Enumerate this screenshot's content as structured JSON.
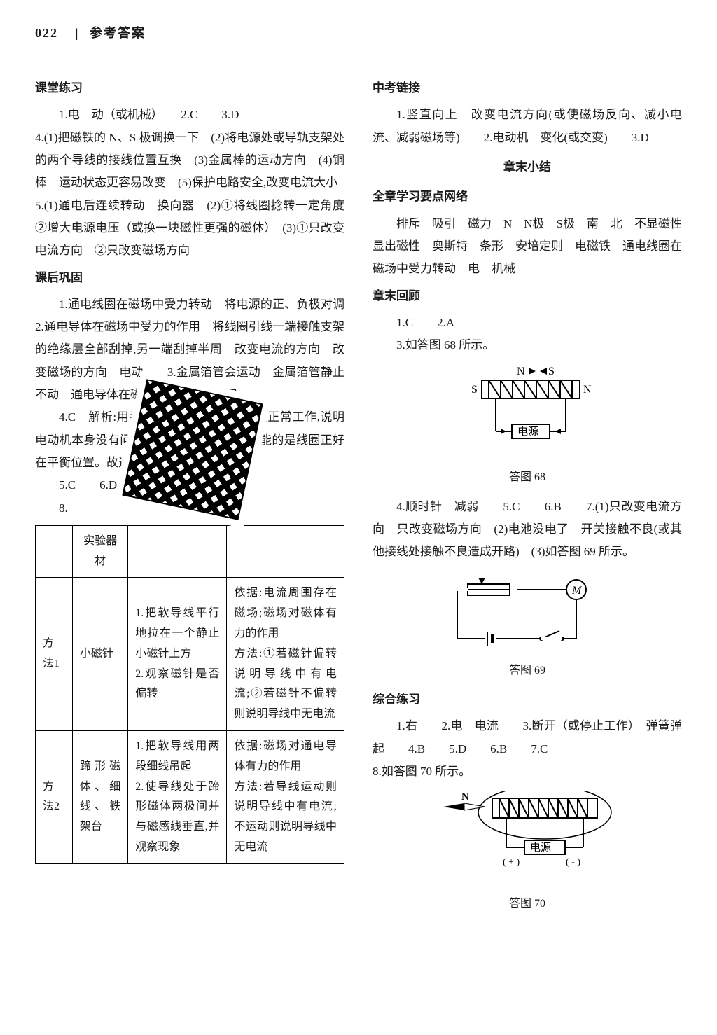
{
  "header": {
    "page_number": "022",
    "divider": "|",
    "title": "参考答案"
  },
  "left_column": {
    "sec1_title": "课堂练习",
    "sec1_line1": "1.电　动（或机械）　　2.C　　3.D",
    "sec1_para1": "4.(1)把磁铁的 N、S 极调换一下　(2)将电源处或导轨支架处的两个导线的接线位置互换　(3)金属棒的运动方向　(4)铜棒　运动状态更容易改变　(5)保护电路安全,改变电流大小",
    "sec1_para2": "5.(1)通电后连续转动　换向器　(2)①将线圈捻转一定角度　②增大电源电压（或换一块磁性更强的磁体）　(3)①只改变电流方向　②只改变磁场方向",
    "sec2_title": "课后巩固",
    "sec2_para1": "1.通电线圈在磁场中受力转动　将电源的正、负极对调　　2.通电导体在磁场中受力的作用　将线圈引线一端接触支架的绝缘层全部刮掉,另一端刮掉半周　改变电流的方向　改变磁场的方向　电动　　3.金属箔管会运动　金属箔管静止不动　通电导体在磁场中受到力的作用",
    "sec2_para2": "4.C　解析:用手轻碰一下后,电动机可以正常工作,说明电动机本身没有问题,电流也应正常,最有可能的是线圈正好在平衡位置。故选 C。",
    "sec2_line3": "5.C　　6.D",
    "sec2_line4": "8.",
    "table": {
      "header": [
        "",
        "实验器材",
        "",
        ""
      ],
      "row1": {
        "c1": "方法1",
        "c2": "小磁针",
        "c3": "1.把软导线平行地拉在一个静止小磁针上方\n2.观察磁针是否偏转",
        "c4": "依据:电流周围存在磁场;磁场对磁体有力的作用\n方法:①若磁针偏转说明导线中有电流;②若磁针不偏转则说明导线中无电流"
      },
      "row2": {
        "c1": "方法2",
        "c2": "蹄形磁体、细线、铁架台",
        "c3": "1.把软导线用两段细线吊起\n2.使导线处于蹄形磁体两极间并与磁感线垂直,并观察现象",
        "c4": "依据:磁场对通电导体有力的作用\n方法:若导线运动则说明导线中有电流;不运动则说明导线中无电流"
      }
    }
  },
  "right_column": {
    "sec1_title": "中考链接",
    "sec1_para1": "1.竖直向上　改变电流方向(或使磁场反向、减小电流、减弱磁场等)　　2.电动机　变化(或交变)　　3.D",
    "chapter_end_title": "章末小结",
    "net_title": "全章学习要点网络",
    "net_para": "排斥　吸引　磁力　N　N极　S极　南　北　不显磁性　显出磁性　奥斯特　条形　安培定则　电磁铁　通电线圈在磁场中受力转动　电　机械",
    "review_title": "章末回顾",
    "review_line1": "1.C　　2.A",
    "review_line2": "3.如答图 68 所示。",
    "fig68_caption": "答图 68",
    "fig68_labels": {
      "N_top": "N",
      "S_top": "S",
      "S_left": "S",
      "N_right": "N",
      "power": "电源"
    },
    "review_para2": "4.顺时针　减弱　　5.C　　6.B　　7.(1)只改变电流方向　只改变磁场方向　(2)电池没电了　开关接触不良(或其他接线处接触不良造成开路)　(3)如答图 69 所示。",
    "fig69_caption": "答图 69",
    "fig69_labels": {
      "M": "M"
    },
    "practice_title": "综合练习",
    "practice_line1": "1.右　　2.电　电流　　3.断开（或停止工作）　弹簧弹起　　4.B　　5.D　　6.B　　7.C",
    "practice_line2": "8.如答图 70 所示。",
    "fig70_caption": "答图 70",
    "fig70_labels": {
      "N": "N",
      "power": "电源",
      "plus": "( + )",
      "minus": "( - )"
    }
  },
  "colors": {
    "text": "#1a1a1a",
    "line": "#000000",
    "background": "#ffffff"
  }
}
